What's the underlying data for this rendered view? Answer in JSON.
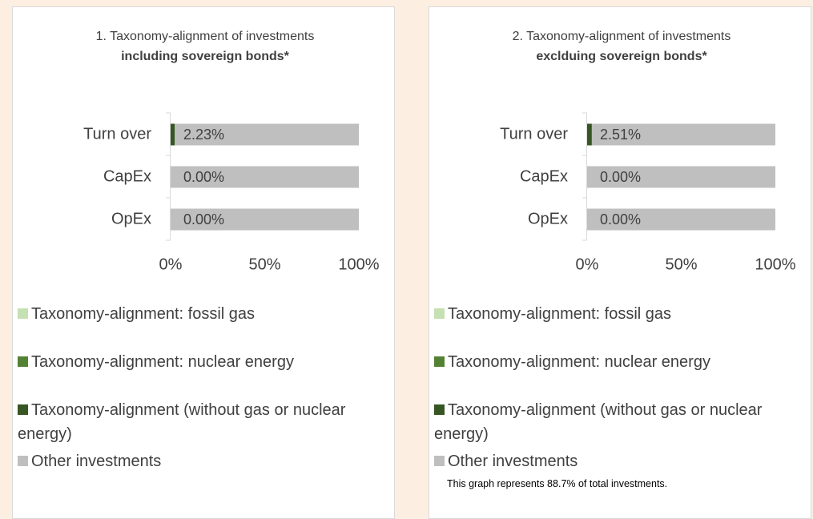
{
  "chart_data": [
    {
      "type": "stacked_bar_h",
      "title": "1. Taxonomy-alignment of investments",
      "subtitle": "including sovereign bonds*",
      "categories": [
        "Turn over",
        "CapEx",
        "OpEx"
      ],
      "series": [
        {
          "name": "Taxonomy-alignment: fossil gas",
          "color": "#c5e0b3",
          "values": [
            0,
            0,
            0
          ]
        },
        {
          "name": "Taxonomy-alignment: nuclear energy",
          "color": "#548235",
          "values": [
            0,
            0,
            0
          ]
        },
        {
          "name": "Taxonomy-alignment (without gas or nuclear energy)",
          "color": "#375623",
          "values": [
            2.23,
            0,
            0
          ],
          "value_labels": [
            "2.23%",
            "0.00%",
            "0.00%"
          ]
        },
        {
          "name": "Other investments",
          "color": "#bfbfbf",
          "values": [
            97.77,
            100,
            100
          ]
        }
      ],
      "xlim": [
        0,
        100
      ],
      "xticks": [
        {
          "value": 0,
          "label": "0%"
        },
        {
          "value": 50,
          "label": "50%"
        },
        {
          "value": 100,
          "label": "100%"
        }
      ],
      "grid": false
    },
    {
      "type": "stacked_bar_h",
      "title": "2. Taxonomy-alignment of investments",
      "subtitle": "exclduing sovereign bonds*",
      "categories": [
        "Turn over",
        "CapEx",
        "OpEx"
      ],
      "series": [
        {
          "name": "Taxonomy-alignment: fossil gas",
          "color": "#c5e0b3",
          "values": [
            0,
            0,
            0
          ]
        },
        {
          "name": "Taxonomy-alignment: nuclear energy",
          "color": "#548235",
          "values": [
            0,
            0,
            0
          ]
        },
        {
          "name": "Taxonomy-alignment (without gas or nuclear energy)",
          "color": "#375623",
          "values": [
            2.51,
            0,
            0
          ],
          "value_labels": [
            "2.51%",
            "0.00%",
            "0.00%"
          ]
        },
        {
          "name": "Other investments",
          "color": "#bfbfbf",
          "values": [
            97.49,
            100,
            100
          ]
        }
      ],
      "xlim": [
        0,
        100
      ],
      "xticks": [
        {
          "value": 0,
          "label": "0%"
        },
        {
          "value": 50,
          "label": "50%"
        },
        {
          "value": 100,
          "label": "100%"
        }
      ],
      "grid": false,
      "annotation": "This graph represents 88.7% of total investments."
    }
  ]
}
